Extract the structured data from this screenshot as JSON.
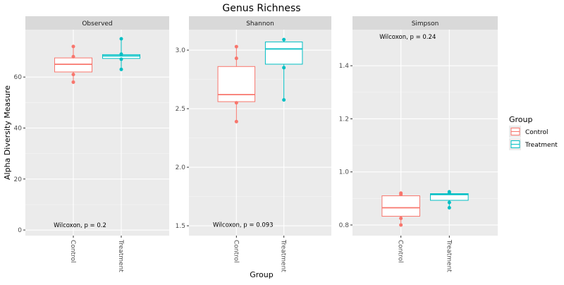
{
  "chart_data": {
    "type": "box",
    "title": "Genus Richness",
    "xlabel": "Group",
    "ylabel": "Alpha Diversity Measure",
    "categories": [
      "Control",
      "Treatment"
    ],
    "colors": {
      "Control": "#F8766D",
      "Treatment": "#00BFC4"
    },
    "legend": {
      "title": "Group",
      "placement": "right",
      "entries": [
        "Control",
        "Treatment"
      ]
    },
    "panels": [
      {
        "name": "Observed",
        "ylim": [
          -2.2,
          78.6
        ],
        "yticks": [
          0,
          20,
          40,
          60
        ],
        "ytick_labels": [
          "0",
          "20",
          "40",
          "60"
        ],
        "annotation": "Wilcoxon, p = 0.2",
        "annotation_y": 2,
        "groups": [
          {
            "group": "Control",
            "q1": 62,
            "median": 65,
            "q3": 67.5,
            "min": 58,
            "max": 72,
            "points": [
              72,
              68,
              61,
              58
            ]
          },
          {
            "group": "Treatment",
            "q1": 67.3,
            "median": 68.3,
            "q3": 68.8,
            "min": 63,
            "max": 75,
            "points": [
              75,
              69,
              67,
              63
            ]
          }
        ]
      },
      {
        "name": "Shannon",
        "ylim": [
          1.416,
          3.175
        ],
        "yticks": [
          1.5,
          2.0,
          2.5,
          3.0
        ],
        "ytick_labels": [
          "1.5",
          "2.0",
          "2.5",
          "3.0"
        ],
        "annotation": "Wilcoxon, p = 0.093",
        "annotation_y": 1.51,
        "groups": [
          {
            "group": "Control",
            "q1": 2.56,
            "median": 2.62,
            "q3": 2.86,
            "min": 2.39,
            "max": 3.03,
            "points": [
              3.03,
              2.93,
              2.55,
              2.39
            ]
          },
          {
            "group": "Treatment",
            "q1": 2.88,
            "median": 3.01,
            "q3": 3.07,
            "min": 2.575,
            "max": 3.09,
            "points": [
              3.09,
              2.85,
              2.575
            ]
          }
        ]
      },
      {
        "name": "Simpson",
        "ylim": [
          0.76,
          1.536
        ],
        "yticks": [
          0.8,
          1.0,
          1.2,
          1.4
        ],
        "ytick_labels": [
          "0.8",
          "1.0",
          "1.2",
          "1.4"
        ],
        "annotation": "Wilcoxon, p = 0.24",
        "annotation_y": 1.51,
        "groups": [
          {
            "group": "Control",
            "q1": 0.833,
            "median": 0.865,
            "q3": 0.91,
            "min": 0.8,
            "max": 0.92,
            "points": [
              0.92,
              0.915,
              0.825,
              0.8
            ]
          },
          {
            "group": "Treatment",
            "q1": 0.893,
            "median": 0.915,
            "q3": 0.918,
            "min": 0.865,
            "max": 0.925,
            "points": [
              0.925,
              0.92,
              0.885,
              0.865
            ]
          }
        ]
      }
    ]
  }
}
